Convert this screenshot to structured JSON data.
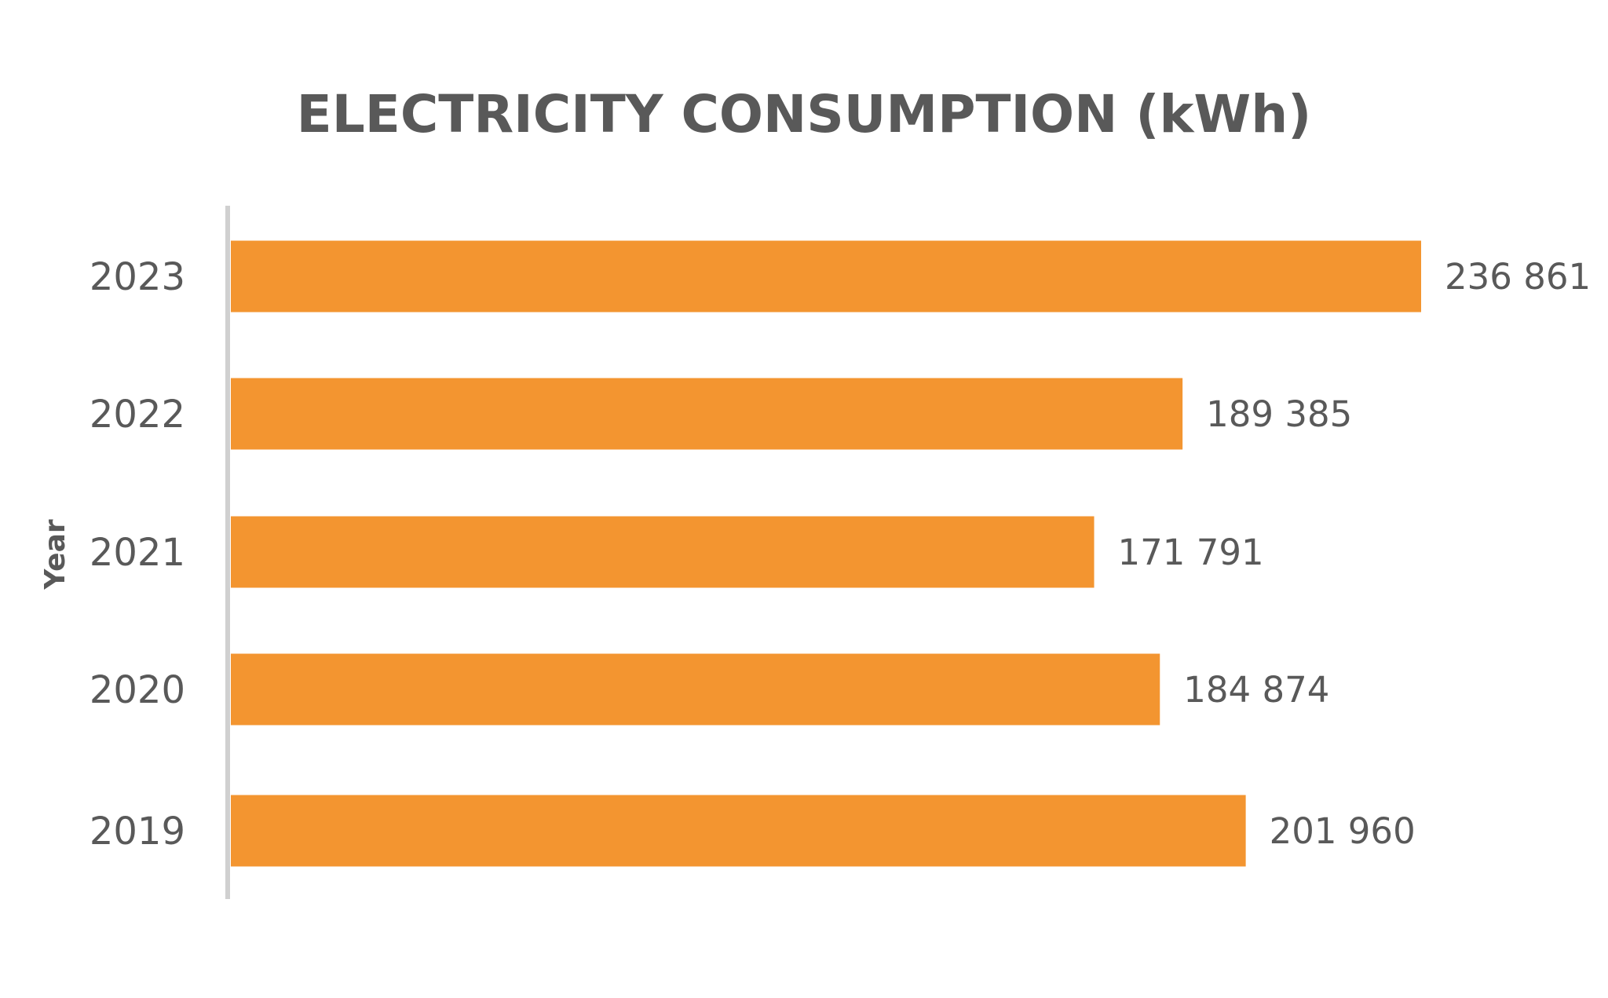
{
  "chart_data": {
    "type": "bar",
    "orientation": "horizontal",
    "title": "ELECTRICITY CONSUMPTION (kWh)",
    "ylabel": "Year",
    "xlabel": "",
    "categories": [
      "2023",
      "2022",
      "2021",
      "2020",
      "2019"
    ],
    "values": [
      236861,
      189385,
      171791,
      184874,
      201960
    ],
    "value_labels": [
      "236 861",
      "189 385",
      "171 791",
      "184 874",
      "201 960"
    ],
    "xlim": [
      0,
      236861
    ],
    "grid": false,
    "legend": "none",
    "colors": {
      "bar": "#F39530",
      "axis": "#D0D0D0",
      "text": "#595959"
    }
  }
}
